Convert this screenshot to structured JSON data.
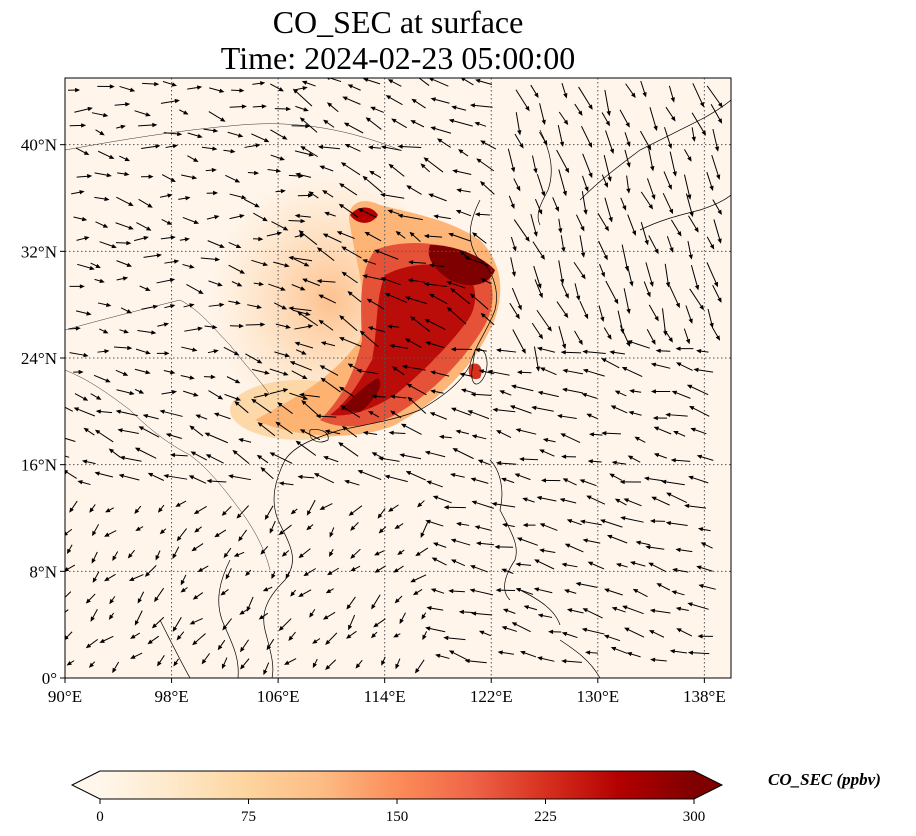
{
  "title": {
    "line1": "CO_SEC at surface",
    "line2": "Time: 2024-02-23 05:00:00"
  },
  "map": {
    "lon_range": [
      90,
      140
    ],
    "lat_range": [
      0,
      45
    ],
    "lon_ticks": [
      "90°E",
      "98°E",
      "106°E",
      "114°E",
      "122°E",
      "130°E",
      "138°E"
    ],
    "lat_ticks": [
      "0°",
      "8°N",
      "16°N",
      "24°N",
      "32°N",
      "40°N"
    ],
    "gridlines": "dotted",
    "background_color": "#fff5eb",
    "plume_colors": [
      "#fdd9b0",
      "#fc8d59",
      "#d7301f",
      "#7f0000"
    ],
    "vector_color": "#000000"
  },
  "colorbar": {
    "label": "CO_SEC (ppbv)",
    "ticks": [
      "0",
      "75",
      "150",
      "225",
      "300"
    ],
    "range": [
      0,
      300
    ],
    "extend": "both",
    "cmap": "OrRd",
    "colors": [
      "#fff7ec",
      "#fee8c8",
      "#fdd49e",
      "#fdbb84",
      "#fc8d59",
      "#ef6548",
      "#d7301f",
      "#b30000",
      "#7f0000"
    ]
  }
}
